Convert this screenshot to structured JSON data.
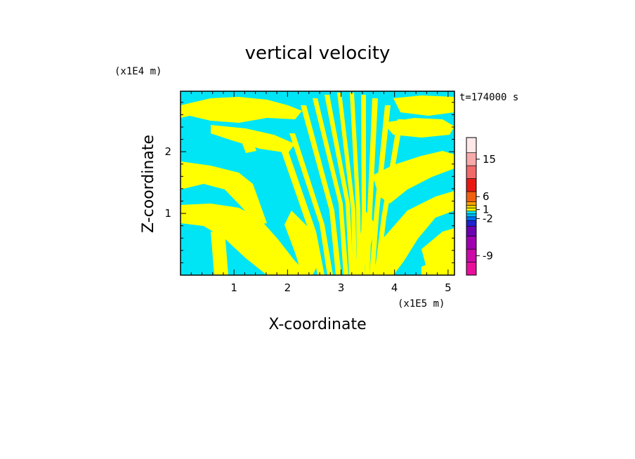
{
  "chart_data": {
    "type": "heatmap",
    "title": "vertical velocity",
    "xlabel": "X-coordinate",
    "ylabel": "Z-coordinate",
    "x_unit": "(x1E5 m)",
    "y_unit": "(x1E4 m)",
    "time_label": "t=174000 s",
    "xlim": [
      0,
      5.12
    ],
    "ylim": [
      0,
      2.98
    ],
    "xticks": [
      1,
      2,
      3,
      4,
      5
    ],
    "xtick_labels": [
      "1",
      "2",
      "3",
      "4",
      "5"
    ],
    "yticks": [
      1,
      2
    ],
    "ytick_labels": [
      "1",
      "2"
    ],
    "field_colors": {
      "negative": "#00e5f5",
      "positive": "#ffff00"
    },
    "colorbar": {
      "colors": [
        "#e8109a",
        "#cc0aa8",
        "#a000b0",
        "#6a00b0",
        "#1e22d0",
        "#0070ff",
        "#00b8f8",
        "#00e5f5",
        "#ffff00",
        "#e8d200",
        "#ffa000",
        "#f06010",
        "#e81810",
        "#f06a6a",
        "#f8aaaa",
        "#fee8e8"
      ],
      "labels": [
        {
          "text": "-9",
          "value": -9
        },
        {
          "text": "-2",
          "value": -2
        },
        {
          "text": "1",
          "value": 1
        },
        {
          "text": "6",
          "value": 6
        },
        {
          "text": "15",
          "value": 15
        }
      ]
    }
  }
}
